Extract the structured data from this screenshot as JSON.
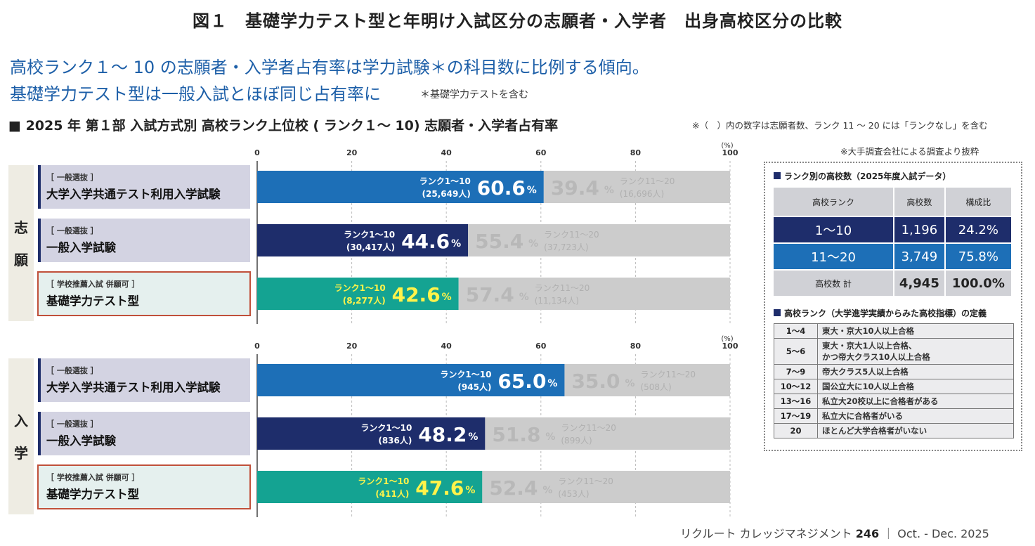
{
  "figure_title": "図１　基礎学力テスト型と年明け入試区分の志願者・入学者　出身高校区分の比較",
  "lead": {
    "line1": "高校ランク１～ 10 の志願者・入学者占有率は学力試験＊の科目数に比例する傾向。",
    "line2": "基礎学力テスト型は一般入試とほぼ同じ占有率に",
    "note": "＊基礎学力テストを含む"
  },
  "chart_heading": "■ 2025 年 第１部 入試方式別 高校ランク上位校 ( ランク１～ 10) 志願者・入学者占有率",
  "chart_note": "※（　）内の数字は志願者数、ランク 11 ～ 20 には「ランクなし」を含む",
  "source_note": "※大手調査会社による調査より抜粋",
  "footer": {
    "text": "リクルート カレッジマネジメント",
    "issue": "246",
    "date": "｜ Oct. - Dec. 2025"
  },
  "colors": {
    "kyotsu": "#1d6fb7",
    "ippan": "#1e2d6b",
    "kiso": "#14a392",
    "gray_bar": "#cccccc",
    "highlight": "#fff34a",
    "group_bg": "#eeece3",
    "cat_bg": "#d3d3e2",
    "kiso_cat_bg": "#e5f0ee",
    "kiso_border": "#c0503a"
  },
  "chart_data": {
    "type": "bar",
    "orientation": "horizontal",
    "stacked": true,
    "axis": {
      "min": 0,
      "max": 100,
      "ticks": [
        0,
        20,
        40,
        60,
        80,
        100
      ],
      "unit": "(%)"
    },
    "series_names": [
      "ランク1～10",
      "ランク11～20"
    ],
    "groups": [
      {
        "name": "志願",
        "rows": [
          {
            "tag": "［ 一般選抜 ］",
            "category": "大学入学共通テスト利用入学試験",
            "style": "kyotsu",
            "r1_pct": 60.6,
            "r1_pct_label": "60.6",
            "r1_count": "(25,649人)",
            "r2_pct": 39.4,
            "r2_pct_label": "39.4",
            "r2_count": "(16,696人)"
          },
          {
            "tag": "［ 一般選抜 ］",
            "category": "一般入学試験",
            "style": "ippan",
            "r1_pct": 44.6,
            "r1_pct_label": "44.6",
            "r1_count": "(30,417人)",
            "r2_pct": 55.4,
            "r2_pct_label": "55.4",
            "r2_count": "(37,723人)"
          },
          {
            "tag": "［ 学校推薦入試 併願可 ］",
            "category": "基礎学力テスト型",
            "style": "kiso",
            "r1_pct": 42.6,
            "r1_pct_label": "42.6",
            "r1_count": "(8,277人)",
            "r2_pct": 57.4,
            "r2_pct_label": "57.4",
            "r2_count": "(11,134人)"
          }
        ]
      },
      {
        "name": "入学",
        "rows": [
          {
            "tag": "［ 一般選抜 ］",
            "category": "大学入学共通テスト利用入学試験",
            "style": "kyotsu",
            "r1_pct": 65.0,
            "r1_pct_label": "65.0",
            "r1_count": "(945人)",
            "r2_pct": 35.0,
            "r2_pct_label": "35.0",
            "r2_count": "(508人)"
          },
          {
            "tag": "［ 一般選抜 ］",
            "category": "一般入学試験",
            "style": "ippan",
            "r1_pct": 48.2,
            "r1_pct_label": "48.2",
            "r1_count": "(836人)",
            "r2_pct": 51.8,
            "r2_pct_label": "51.8",
            "r2_count": "(899人)"
          },
          {
            "tag": "［ 学校推薦入試 併願可 ］",
            "category": "基礎学力テスト型",
            "style": "kiso",
            "r1_pct": 47.6,
            "r1_pct_label": "47.6",
            "r1_count": "(411人)",
            "r2_pct": 52.4,
            "r2_pct_label": "52.4",
            "r2_count": "(453人)"
          }
        ]
      }
    ]
  },
  "rank_table": {
    "title": "ランク別の高校数（2025年度入試データ）",
    "headers": [
      "高校ランク",
      "高校数",
      "構成比"
    ],
    "rows": [
      {
        "rank": "1～10",
        "count": "1,196",
        "ratio": "24.2%"
      },
      {
        "rank": "11～20",
        "count": "3,749",
        "ratio": "75.8%"
      },
      {
        "rank": "高校数 計",
        "count": "4,945",
        "ratio": "100.0%"
      }
    ]
  },
  "definition_table": {
    "title": "高校ランク（大学進学実績からみた高校指標）の定義",
    "rows": [
      {
        "rank": "1～4",
        "def": "東大・京大10人以上合格"
      },
      {
        "rank": "5～6",
        "def": "東大・京大1人以上合格、",
        "def2": "かつ帝大クラス10人以上合格"
      },
      {
        "rank": "7～9",
        "def": "帝大クラス5人以上合格"
      },
      {
        "rank": "10～12",
        "def": "国公立大に10人以上合格"
      },
      {
        "rank": "13～16",
        "def": "私立大20校以上に合格者がある"
      },
      {
        "rank": "17～19",
        "def": "私立大に合格者がいる"
      },
      {
        "rank": "20",
        "def": "ほとんど大学合格者がいない"
      }
    ]
  }
}
